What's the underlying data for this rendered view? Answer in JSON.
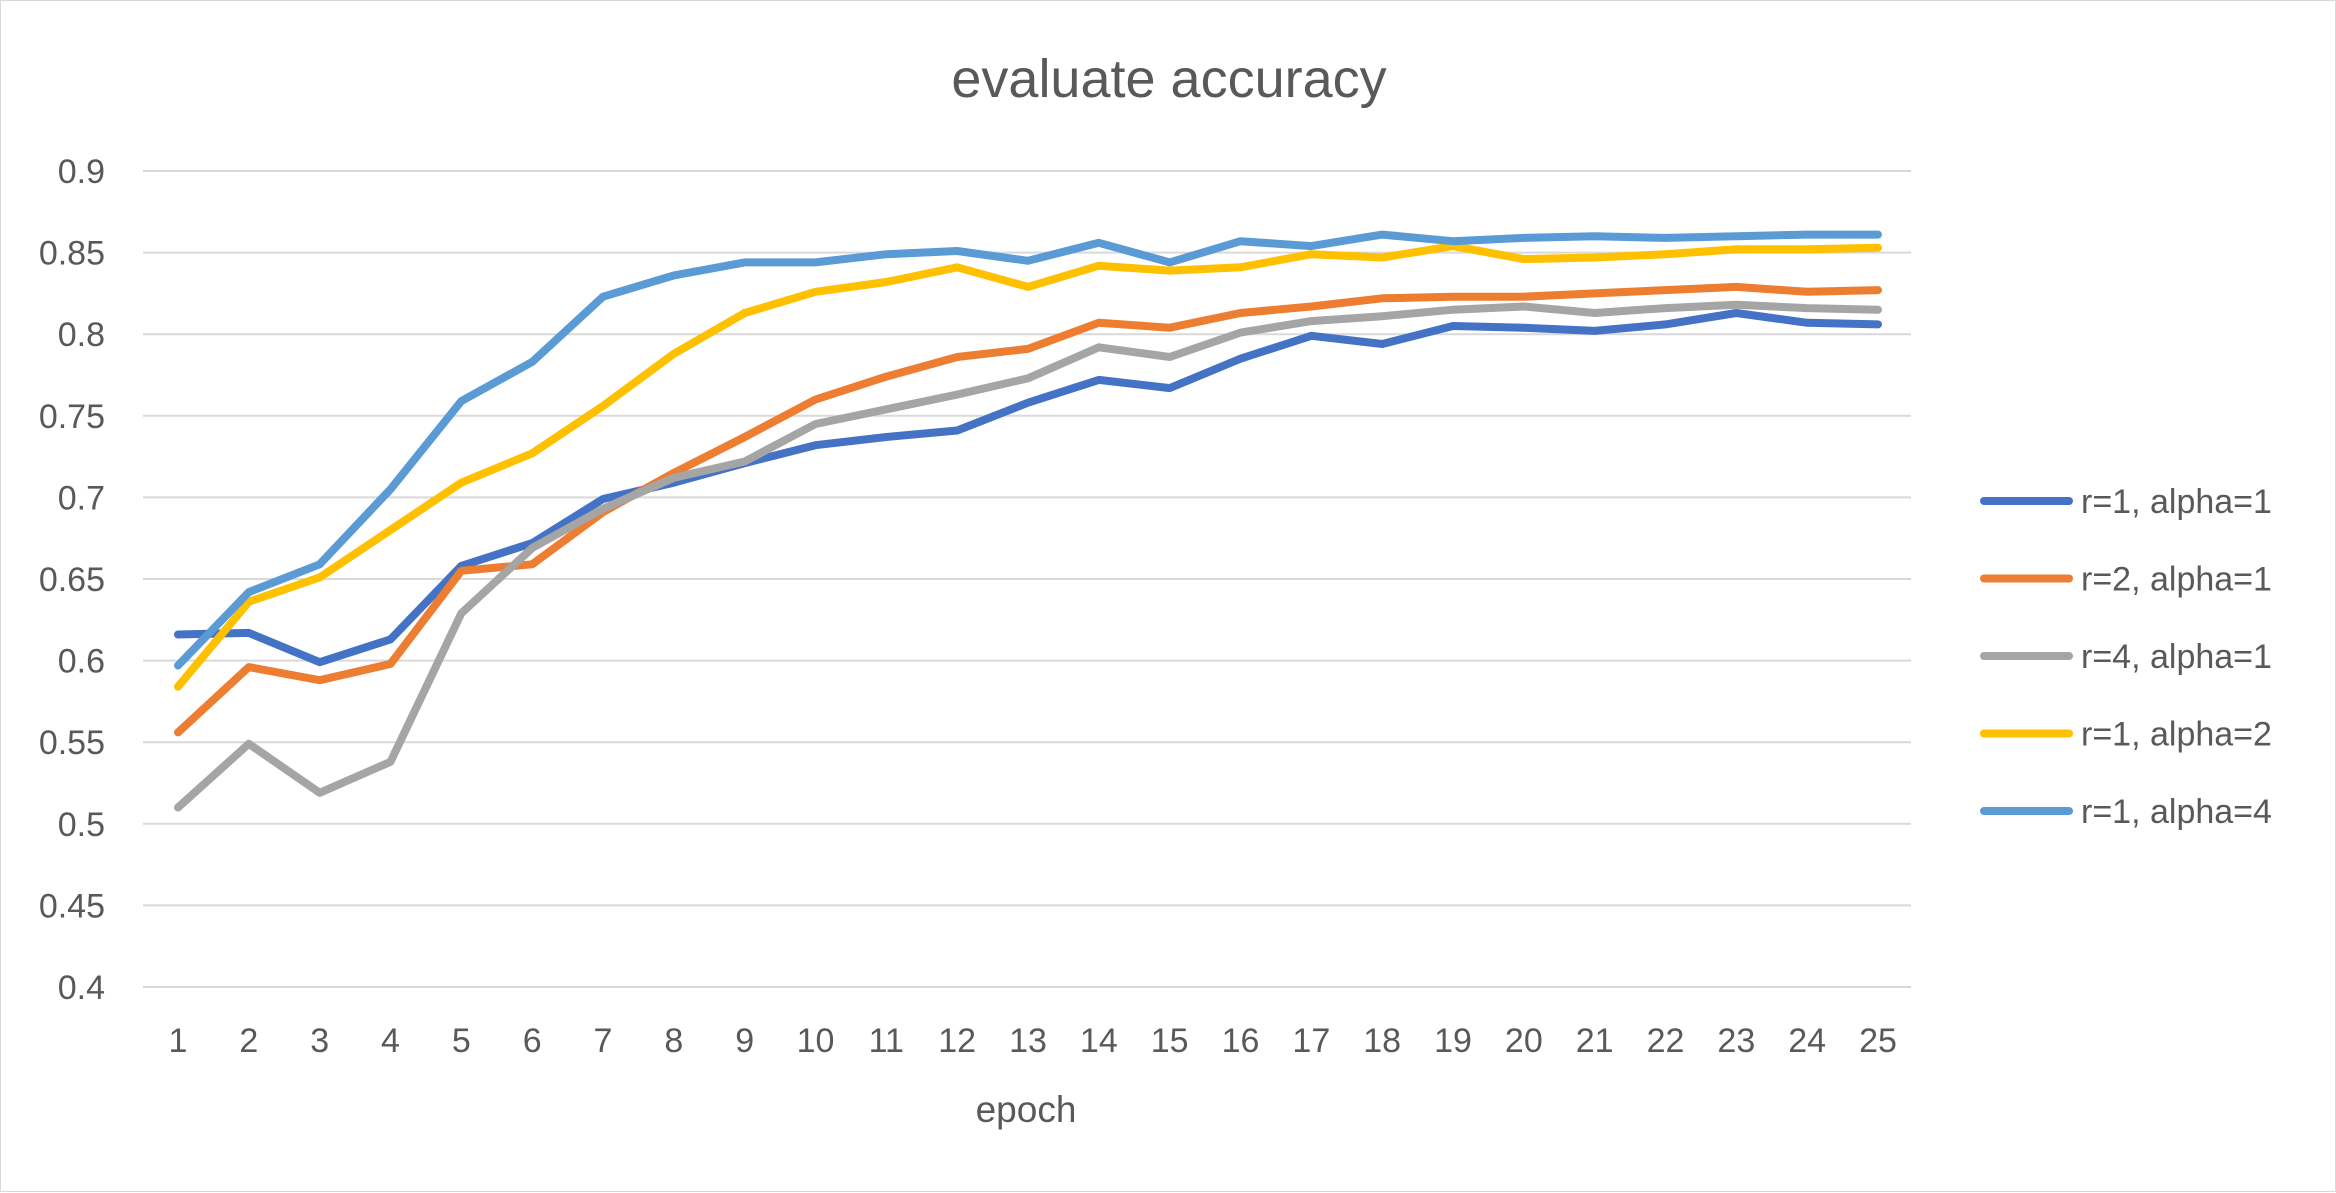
{
  "chart_data": {
    "type": "line",
    "title": "evaluate accuracy",
    "xlabel": "epoch",
    "ylabel": "",
    "x": [
      1,
      2,
      3,
      4,
      5,
      6,
      7,
      8,
      9,
      10,
      11,
      12,
      13,
      14,
      15,
      16,
      17,
      18,
      19,
      20,
      21,
      22,
      23,
      24,
      25
    ],
    "ylim": [
      0.4,
      0.9
    ],
    "yticks": [
      "0.4",
      "0.45",
      "0.5",
      "0.55",
      "0.6",
      "0.65",
      "0.7",
      "0.75",
      "0.8",
      "0.85",
      "0.9"
    ],
    "grid": true,
    "legend_position": "right",
    "series": [
      {
        "name": "r=1, alpha=1",
        "color": "#4472c4",
        "values": [
          0.616,
          0.617,
          0.599,
          0.613,
          0.658,
          0.672,
          0.699,
          0.709,
          0.721,
          0.732,
          0.737,
          0.741,
          0.758,
          0.772,
          0.767,
          0.785,
          0.799,
          0.794,
          0.805,
          0.804,
          0.802,
          0.806,
          0.813,
          0.807,
          0.806
        ]
      },
      {
        "name": "r=2, alpha=1",
        "color": "#ed7d31",
        "values": [
          0.556,
          0.596,
          0.588,
          0.598,
          0.655,
          0.659,
          0.691,
          0.715,
          0.737,
          0.76,
          0.774,
          0.786,
          0.791,
          0.807,
          0.804,
          0.813,
          0.817,
          0.822,
          0.823,
          0.823,
          0.825,
          0.827,
          0.829,
          0.826,
          0.827
        ]
      },
      {
        "name": "r=4, alpha=1",
        "color": "#a5a5a5",
        "values": [
          0.51,
          0.549,
          0.519,
          0.538,
          0.629,
          0.669,
          0.693,
          0.712,
          0.722,
          0.745,
          0.754,
          0.763,
          0.773,
          0.792,
          0.786,
          0.801,
          0.808,
          0.811,
          0.815,
          0.817,
          0.813,
          0.816,
          0.818,
          0.816,
          0.815
        ]
      },
      {
        "name": "r=1, alpha=2",
        "color": "#ffc000",
        "values": [
          0.584,
          0.636,
          0.651,
          0.68,
          0.709,
          0.727,
          0.756,
          0.788,
          0.813,
          0.826,
          0.832,
          0.841,
          0.829,
          0.842,
          0.839,
          0.841,
          0.849,
          0.847,
          0.854,
          0.846,
          0.847,
          0.849,
          0.852,
          0.852,
          0.853
        ]
      },
      {
        "name": "r=1, alpha=4",
        "color": "#5b9bd5",
        "values": [
          0.597,
          0.642,
          0.659,
          0.705,
          0.759,
          0.783,
          0.823,
          0.836,
          0.844,
          0.844,
          0.849,
          0.851,
          0.845,
          0.856,
          0.844,
          0.857,
          0.854,
          0.861,
          0.857,
          0.859,
          0.86,
          0.859,
          0.86,
          0.861,
          0.861
        ]
      }
    ]
  }
}
